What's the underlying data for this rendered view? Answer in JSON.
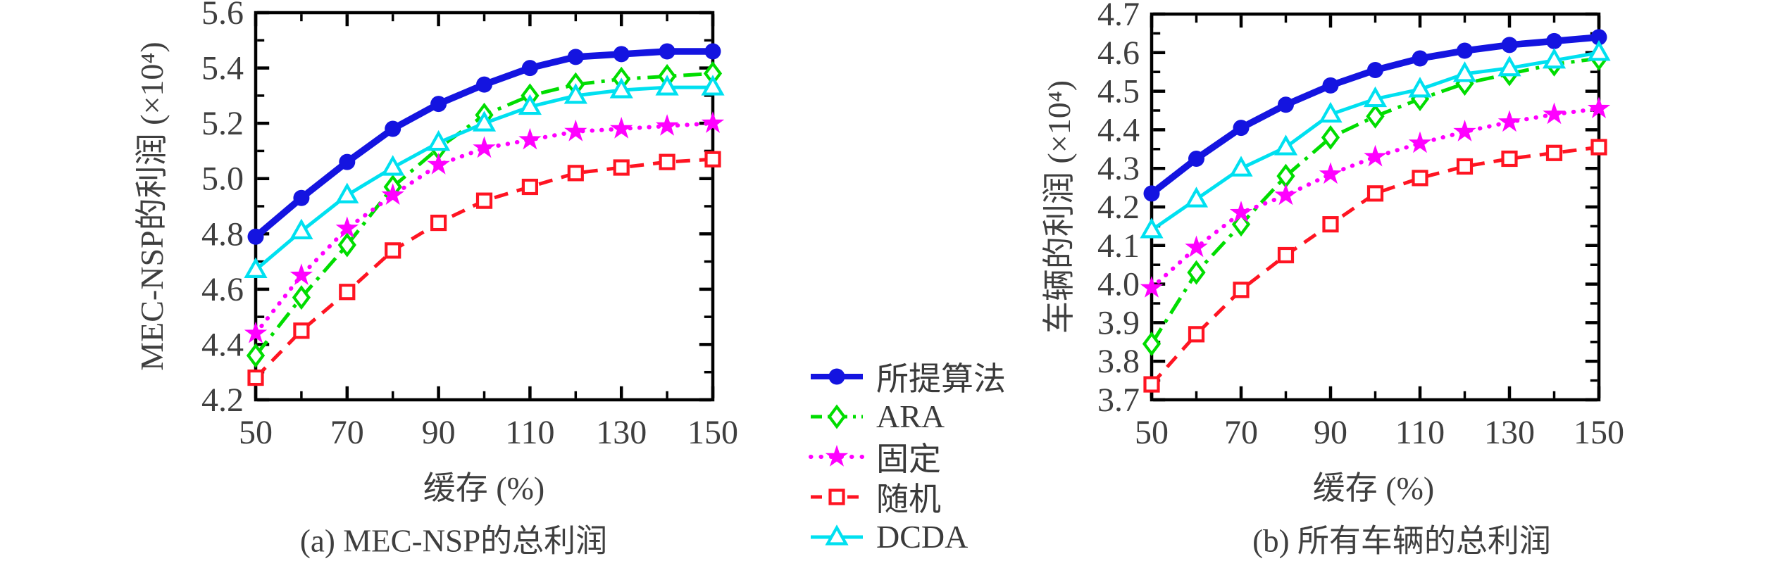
{
  "page": {
    "background": "#ffffff"
  },
  "legend": {
    "items": [
      {
        "id": "proposed",
        "label": "所提算法",
        "color": "#1414e0",
        "line": "solid",
        "marker": "circle",
        "filled": true,
        "width": 9.5
      },
      {
        "id": "ara",
        "label": "ARA",
        "color": "#00dd00",
        "line": "dashdot",
        "marker": "diamond",
        "filled": false,
        "width": 5
      },
      {
        "id": "fixed",
        "label": "固定",
        "color": "#ff00ff",
        "line": "dotted",
        "marker": "star",
        "filled": true,
        "width": 5.5
      },
      {
        "id": "random",
        "label": "随机",
        "color": "#ff1422",
        "line": "dashed",
        "marker": "square",
        "filled": false,
        "width": 5
      },
      {
        "id": "dcda",
        "label": "DCDA",
        "color": "#00e0f0",
        "line": "solid",
        "marker": "triangle",
        "filled": false,
        "width": 5
      }
    ]
  },
  "chart_data": [
    {
      "type": "line",
      "caption": "(a) MEC-NSP的总利润",
      "xlabel": "缓存 (%)",
      "ylabel": "MEC-NSP的利润 (×10⁴)",
      "x": [
        50,
        60,
        70,
        80,
        90,
        100,
        110,
        120,
        130,
        140,
        150
      ],
      "xlim": [
        50,
        150
      ],
      "ylim": [
        4.2,
        5.6
      ],
      "xtick_labels": [
        50,
        70,
        90,
        110,
        130,
        150
      ],
      "xtick_minor_step": 10,
      "ytick_labels": [
        "4.2",
        "4.4",
        "4.6",
        "4.8",
        "5.0",
        "5.2",
        "5.4",
        "5.6"
      ],
      "ytick_step": 0.2,
      "ytick_minor_step": 0.1,
      "grid": false,
      "series": [
        {
          "name": "所提算法",
          "values": [
            4.79,
            4.93,
            5.06,
            5.18,
            5.27,
            5.34,
            5.4,
            5.44,
            5.45,
            5.46,
            5.46
          ]
        },
        {
          "name": "ARA",
          "values": [
            4.36,
            4.57,
            4.76,
            4.97,
            5.11,
            5.23,
            5.3,
            5.34,
            5.36,
            5.37,
            5.38
          ]
        },
        {
          "name": "固定",
          "values": [
            4.44,
            4.65,
            4.82,
            4.94,
            5.05,
            5.11,
            5.14,
            5.17,
            5.18,
            5.19,
            5.2
          ]
        },
        {
          "name": "随机",
          "values": [
            4.28,
            4.45,
            4.59,
            4.74,
            4.84,
            4.92,
            4.97,
            5.02,
            5.04,
            5.06,
            5.07
          ]
        },
        {
          "name": "DCDA",
          "values": [
            4.67,
            4.81,
            4.94,
            5.04,
            5.13,
            5.2,
            5.26,
            5.3,
            5.32,
            5.33,
            5.33
          ]
        }
      ]
    },
    {
      "type": "line",
      "caption": "(b) 所有车辆的总利润",
      "xlabel": "缓存 (%)",
      "ylabel": "车辆的利润 (×10⁴)",
      "x": [
        50,
        60,
        70,
        80,
        90,
        100,
        110,
        120,
        130,
        140,
        150
      ],
      "xlim": [
        50,
        150
      ],
      "ylim": [
        3.7,
        4.7
      ],
      "xtick_labels": [
        50,
        70,
        90,
        110,
        130,
        150
      ],
      "xtick_minor_step": 10,
      "ytick_labels": [
        "3.7",
        "3.8",
        "3.9",
        "4.0",
        "4.1",
        "4.2",
        "4.3",
        "4.4",
        "4.5",
        "4.6",
        "4.7"
      ],
      "ytick_step": 0.1,
      "ytick_minor_step": 0.05,
      "grid": false,
      "series": [
        {
          "name": "所提算法",
          "values": [
            4.235,
            4.325,
            4.405,
            4.465,
            4.515,
            4.555,
            4.585,
            4.605,
            4.62,
            4.63,
            4.64
          ]
        },
        {
          "name": "ARA",
          "values": [
            3.845,
            4.03,
            4.155,
            4.28,
            4.38,
            4.435,
            4.48,
            4.52,
            4.545,
            4.57,
            4.585
          ]
        },
        {
          "name": "固定",
          "values": [
            3.99,
            4.095,
            4.185,
            4.23,
            4.285,
            4.33,
            4.365,
            4.395,
            4.42,
            4.44,
            4.455
          ]
        },
        {
          "name": "随机",
          "values": [
            3.74,
            3.87,
            3.985,
            4.075,
            4.155,
            4.235,
            4.275,
            4.305,
            4.325,
            4.34,
            4.355
          ]
        },
        {
          "name": "DCDA",
          "values": [
            4.14,
            4.22,
            4.3,
            4.355,
            4.44,
            4.48,
            4.505,
            4.545,
            4.56,
            4.58,
            4.6
          ]
        }
      ]
    }
  ]
}
